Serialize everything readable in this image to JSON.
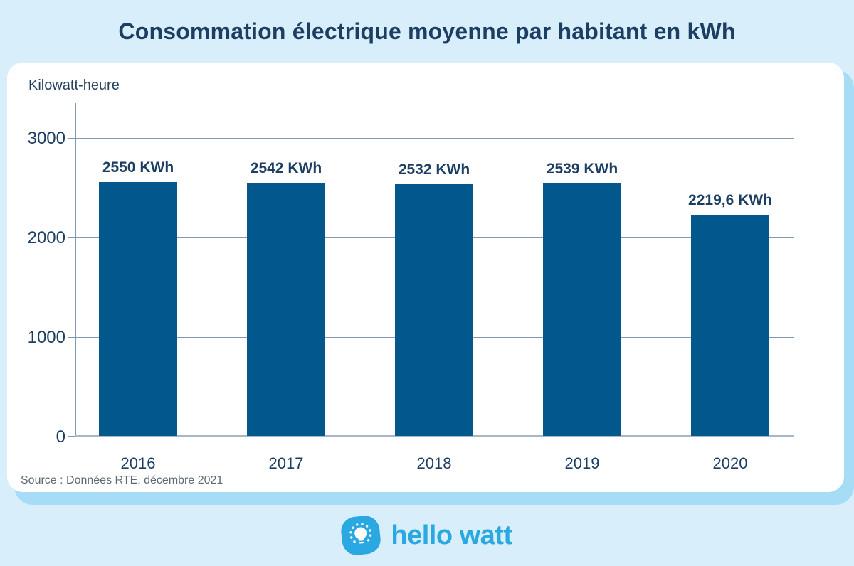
{
  "header": {
    "title": "Consommation électrique moyenne par habitant en kWh"
  },
  "chart": {
    "axis_title": "Kilowatt-heure",
    "source": "Source : Données RTE, décembre 2021"
  },
  "chart_data": {
    "type": "bar",
    "title": "Consommation électrique moyenne par habitant en kWh",
    "categories": [
      "2016",
      "2017",
      "2018",
      "2019",
      "2020"
    ],
    "values": [
      2550,
      2542,
      2532,
      2539,
      2219.6
    ],
    "value_labels": [
      "2550 KWh",
      "2542 KWh",
      "2532 KWh",
      "2539 KWh",
      "2219,6 KWh"
    ],
    "xlabel": "",
    "ylabel": "Kilowatt-heure",
    "ylim": [
      0,
      3350
    ],
    "yticks": [
      0,
      1000,
      2000,
      3000
    ],
    "grid": true,
    "legend": "none",
    "bar_color": "#02578c"
  },
  "footer": {
    "logo_text": "hello watt"
  },
  "colors": {
    "background": "#d9eefb",
    "card_shadow": "#a7dcf6",
    "card": "#ffffff",
    "bar": "#02578c",
    "navy_text": "#1d3e63",
    "gridline": "#8398ad",
    "source_text": "#5d6a75",
    "logo_blue": "#29a8e1"
  }
}
